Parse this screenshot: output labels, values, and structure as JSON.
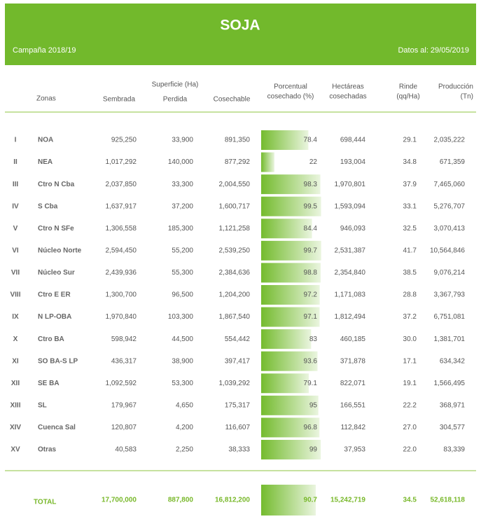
{
  "header": {
    "title": "SOJA",
    "campaign": "Campaña 2018/19",
    "date": "Datos al: 29/05/2019"
  },
  "columns": {
    "superficie": "Superficie (Ha)",
    "zonas": "Zonas",
    "sembrada": "Sembrada",
    "perdida": "Perdida",
    "cosechable": "Cosechable",
    "porcentual": [
      "Porcentual",
      "cosechado (%)"
    ],
    "hectareas": [
      "Hectáreas",
      "cosechadas"
    ],
    "rinde": [
      "Rinde",
      "(qq/Ha)"
    ],
    "produccion": [
      "Producción",
      "(Tn)"
    ]
  },
  "rows": [
    {
      "zone": "I",
      "name": "NOA",
      "sembrada": "925,250",
      "perdida": "33,900",
      "cosechable": "891,350",
      "pct": 78.4,
      "hectareas": "698,444",
      "rinde": "29.1",
      "produccion": "2,035,222"
    },
    {
      "zone": "II",
      "name": "NEA",
      "sembrada": "1,017,292",
      "perdida": "140,000",
      "cosechable": "877,292",
      "pct": 22.0,
      "hectareas": "193,004",
      "rinde": "34.8",
      "produccion": "671,359"
    },
    {
      "zone": "III",
      "name": "Ctro N Cba",
      "sembrada": "2,037,850",
      "perdida": "33,300",
      "cosechable": "2,004,550",
      "pct": 98.3,
      "hectareas": "1,970,801",
      "rinde": "37.9",
      "produccion": "7,465,060"
    },
    {
      "zone": "IV",
      "name": "S Cba",
      "sembrada": "1,637,917",
      "perdida": "37,200",
      "cosechable": "1,600,717",
      "pct": 99.5,
      "hectareas": "1,593,094",
      "rinde": "33.1",
      "produccion": "5,276,707"
    },
    {
      "zone": "V",
      "name": "Ctro N SFe",
      "sembrada": "1,306,558",
      "perdida": "185,300",
      "cosechable": "1,121,258",
      "pct": 84.4,
      "hectareas": "946,093",
      "rinde": "32.5",
      "produccion": "3,070,413"
    },
    {
      "zone": "VI",
      "name": "Núcleo Norte",
      "sembrada": "2,594,450",
      "perdida": "55,200",
      "cosechable": "2,539,250",
      "pct": 99.7,
      "hectareas": "2,531,387",
      "rinde": "41.7",
      "produccion": "10,564,846"
    },
    {
      "zone": "VII",
      "name": "Núcleo Sur",
      "sembrada": "2,439,936",
      "perdida": "55,300",
      "cosechable": "2,384,636",
      "pct": 98.8,
      "hectareas": "2,354,840",
      "rinde": "38.5",
      "produccion": "9,076,214"
    },
    {
      "zone": "VIII",
      "name": "Ctro E ER",
      "sembrada": "1,300,700",
      "perdida": "96,500",
      "cosechable": "1,204,200",
      "pct": 97.2,
      "hectareas": "1,171,083",
      "rinde": "28.8",
      "produccion": "3,367,793"
    },
    {
      "zone": "IX",
      "name": "N LP-OBA",
      "sembrada": "1,970,840",
      "perdida": "103,300",
      "cosechable": "1,867,540",
      "pct": 97.1,
      "hectareas": "1,812,494",
      "rinde": "37.2",
      "produccion": "6,751,081"
    },
    {
      "zone": "X",
      "name": "Ctro BA",
      "sembrada": "598,942",
      "perdida": "44,500",
      "cosechable": "554,442",
      "pct": 83.0,
      "hectareas": "460,185",
      "rinde": "30.0",
      "produccion": "1,381,701"
    },
    {
      "zone": "XI",
      "name": "SO BA-S LP",
      "sembrada": "436,317",
      "perdida": "38,900",
      "cosechable": "397,417",
      "pct": 93.6,
      "hectareas": "371,878",
      "rinde": "17.1",
      "produccion": "634,342"
    },
    {
      "zone": "XII",
      "name": "SE BA",
      "sembrada": "1,092,592",
      "perdida": "53,300",
      "cosechable": "1,039,292",
      "pct": 79.1,
      "hectareas": "822,071",
      "rinde": "19.1",
      "produccion": "1,566,495"
    },
    {
      "zone": "XIII",
      "name": "SL",
      "sembrada": "179,967",
      "perdida": "4,650",
      "cosechable": "175,317",
      "pct": 95.0,
      "hectareas": "166,551",
      "rinde": "22.2",
      "produccion": "368,971"
    },
    {
      "zone": "XIV",
      "name": "Cuenca Sal",
      "sembrada": "120,807",
      "perdida": "4,200",
      "cosechable": "116,607",
      "pct": 96.8,
      "hectareas": "112,842",
      "rinde": "27.0",
      "produccion": "304,577"
    },
    {
      "zone": "XV",
      "name": "Otras",
      "sembrada": "40,583",
      "perdida": "2,250",
      "cosechable": "38,333",
      "pct": 99.0,
      "hectareas": "37,953",
      "rinde": "22.0",
      "produccion": "83,339"
    }
  ],
  "total": {
    "label": "TOTAL",
    "sembrada": "17,700,000",
    "perdida": "887,800",
    "cosechable": "16,812,200",
    "pct": 90.7,
    "hectareas": "15,242,719",
    "rinde": "34.5",
    "produccion": "52,618,118"
  }
}
